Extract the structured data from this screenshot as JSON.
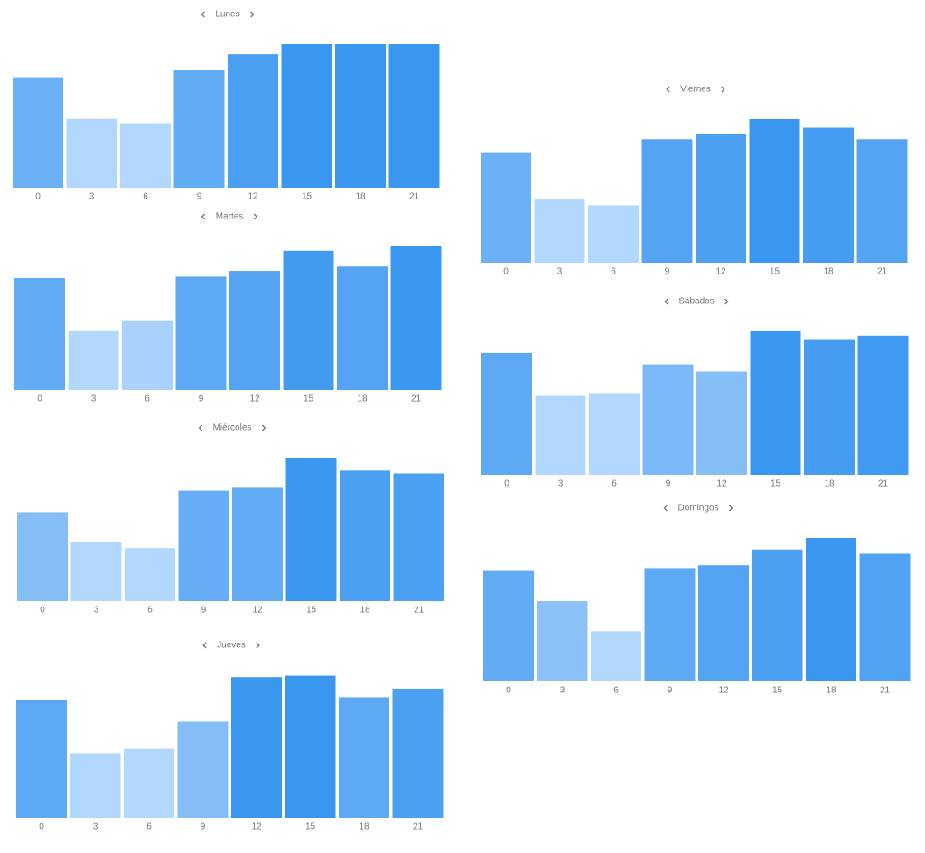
{
  "chart_data": [
    {
      "type": "bar",
      "title": "Lunes",
      "categories": [
        "0",
        "3",
        "6",
        "9",
        "12",
        "15",
        "18",
        "21"
      ],
      "values": [
        77,
        48,
        45,
        82,
        93,
        100,
        100,
        100
      ],
      "colors": [
        "#6cb1f6",
        "#b3d8fd",
        "#b3d8fd",
        "#62abf5",
        "#4a9ff2",
        "#3a97f0",
        "#3a97f0",
        "#3a97f0"
      ],
      "ylim": [
        0,
        100
      ]
    },
    {
      "type": "bar",
      "title": "Martes",
      "categories": [
        "0",
        "3",
        "6",
        "9",
        "12",
        "15",
        "18",
        "21"
      ],
      "values": [
        78,
        41,
        48,
        79,
        83,
        97,
        86,
        100
      ],
      "colors": [
        "#62abf5",
        "#b3d8fd",
        "#a8d2fc",
        "#5ea9f4",
        "#55a4f3",
        "#439bf1",
        "#55a4f3",
        "#3a97f0"
      ],
      "ylim": [
        0,
        100
      ]
    },
    {
      "type": "bar",
      "title": "Miércoles",
      "categories": [
        "0",
        "3",
        "6",
        "9",
        "12",
        "15",
        "18",
        "21"
      ],
      "values": [
        62,
        41,
        37,
        77,
        79,
        100,
        91,
        89
      ],
      "colors": [
        "#85bdf7",
        "#b3d8fd",
        "#b3d8fd",
        "#66adf5",
        "#62abf5",
        "#3a97f0",
        "#4ca0f2",
        "#4ca0f2"
      ],
      "ylim": [
        0,
        100
      ]
    },
    {
      "type": "bar",
      "title": "Jueves",
      "categories": [
        "0",
        "3",
        "6",
        "9",
        "12",
        "15",
        "18",
        "21"
      ],
      "values": [
        82,
        45,
        48,
        67,
        98,
        99,
        84,
        90
      ],
      "colors": [
        "#5ea9f4",
        "#b3d8fd",
        "#b3d8fd",
        "#85bdf7",
        "#3a97f0",
        "#3a97f0",
        "#5ea9f4",
        "#4ca0f2"
      ],
      "ylim": [
        0,
        100
      ]
    },
    {
      "type": "bar",
      "title": "Viernes",
      "categories": [
        "0",
        "3",
        "6",
        "9",
        "12",
        "15",
        "18",
        "21"
      ],
      "values": [
        77,
        44,
        40,
        86,
        90,
        100,
        94,
        86
      ],
      "colors": [
        "#6cb1f6",
        "#b3d8fd",
        "#b3d8fd",
        "#55a4f3",
        "#4ca0f2",
        "#3a97f0",
        "#459cf1",
        "#55a4f3"
      ],
      "ylim": [
        0,
        100
      ]
    },
    {
      "type": "bar",
      "title": "Sábados",
      "categories": [
        "0",
        "3",
        "6",
        "9",
        "12",
        "15",
        "18",
        "21"
      ],
      "values": [
        85,
        55,
        57,
        77,
        72,
        100,
        94,
        97
      ],
      "colors": [
        "#5ea9f4",
        "#b3d8fd",
        "#b3d8fd",
        "#7ab8f7",
        "#85bdf7",
        "#3a97f0",
        "#459cf1",
        "#409af1"
      ],
      "ylim": [
        0,
        100
      ]
    },
    {
      "type": "bar",
      "title": "Domingos",
      "categories": [
        "0",
        "3",
        "6",
        "9",
        "12",
        "15",
        "18",
        "21"
      ],
      "values": [
        77,
        56,
        35,
        79,
        81,
        92,
        100,
        89
      ],
      "colors": [
        "#62abf5",
        "#8cc1f8",
        "#b3d8fd",
        "#5ea9f4",
        "#55a4f3",
        "#4ca0f2",
        "#3a97f0",
        "#50a2f2"
      ],
      "ylim": [
        0,
        100
      ]
    }
  ]
}
